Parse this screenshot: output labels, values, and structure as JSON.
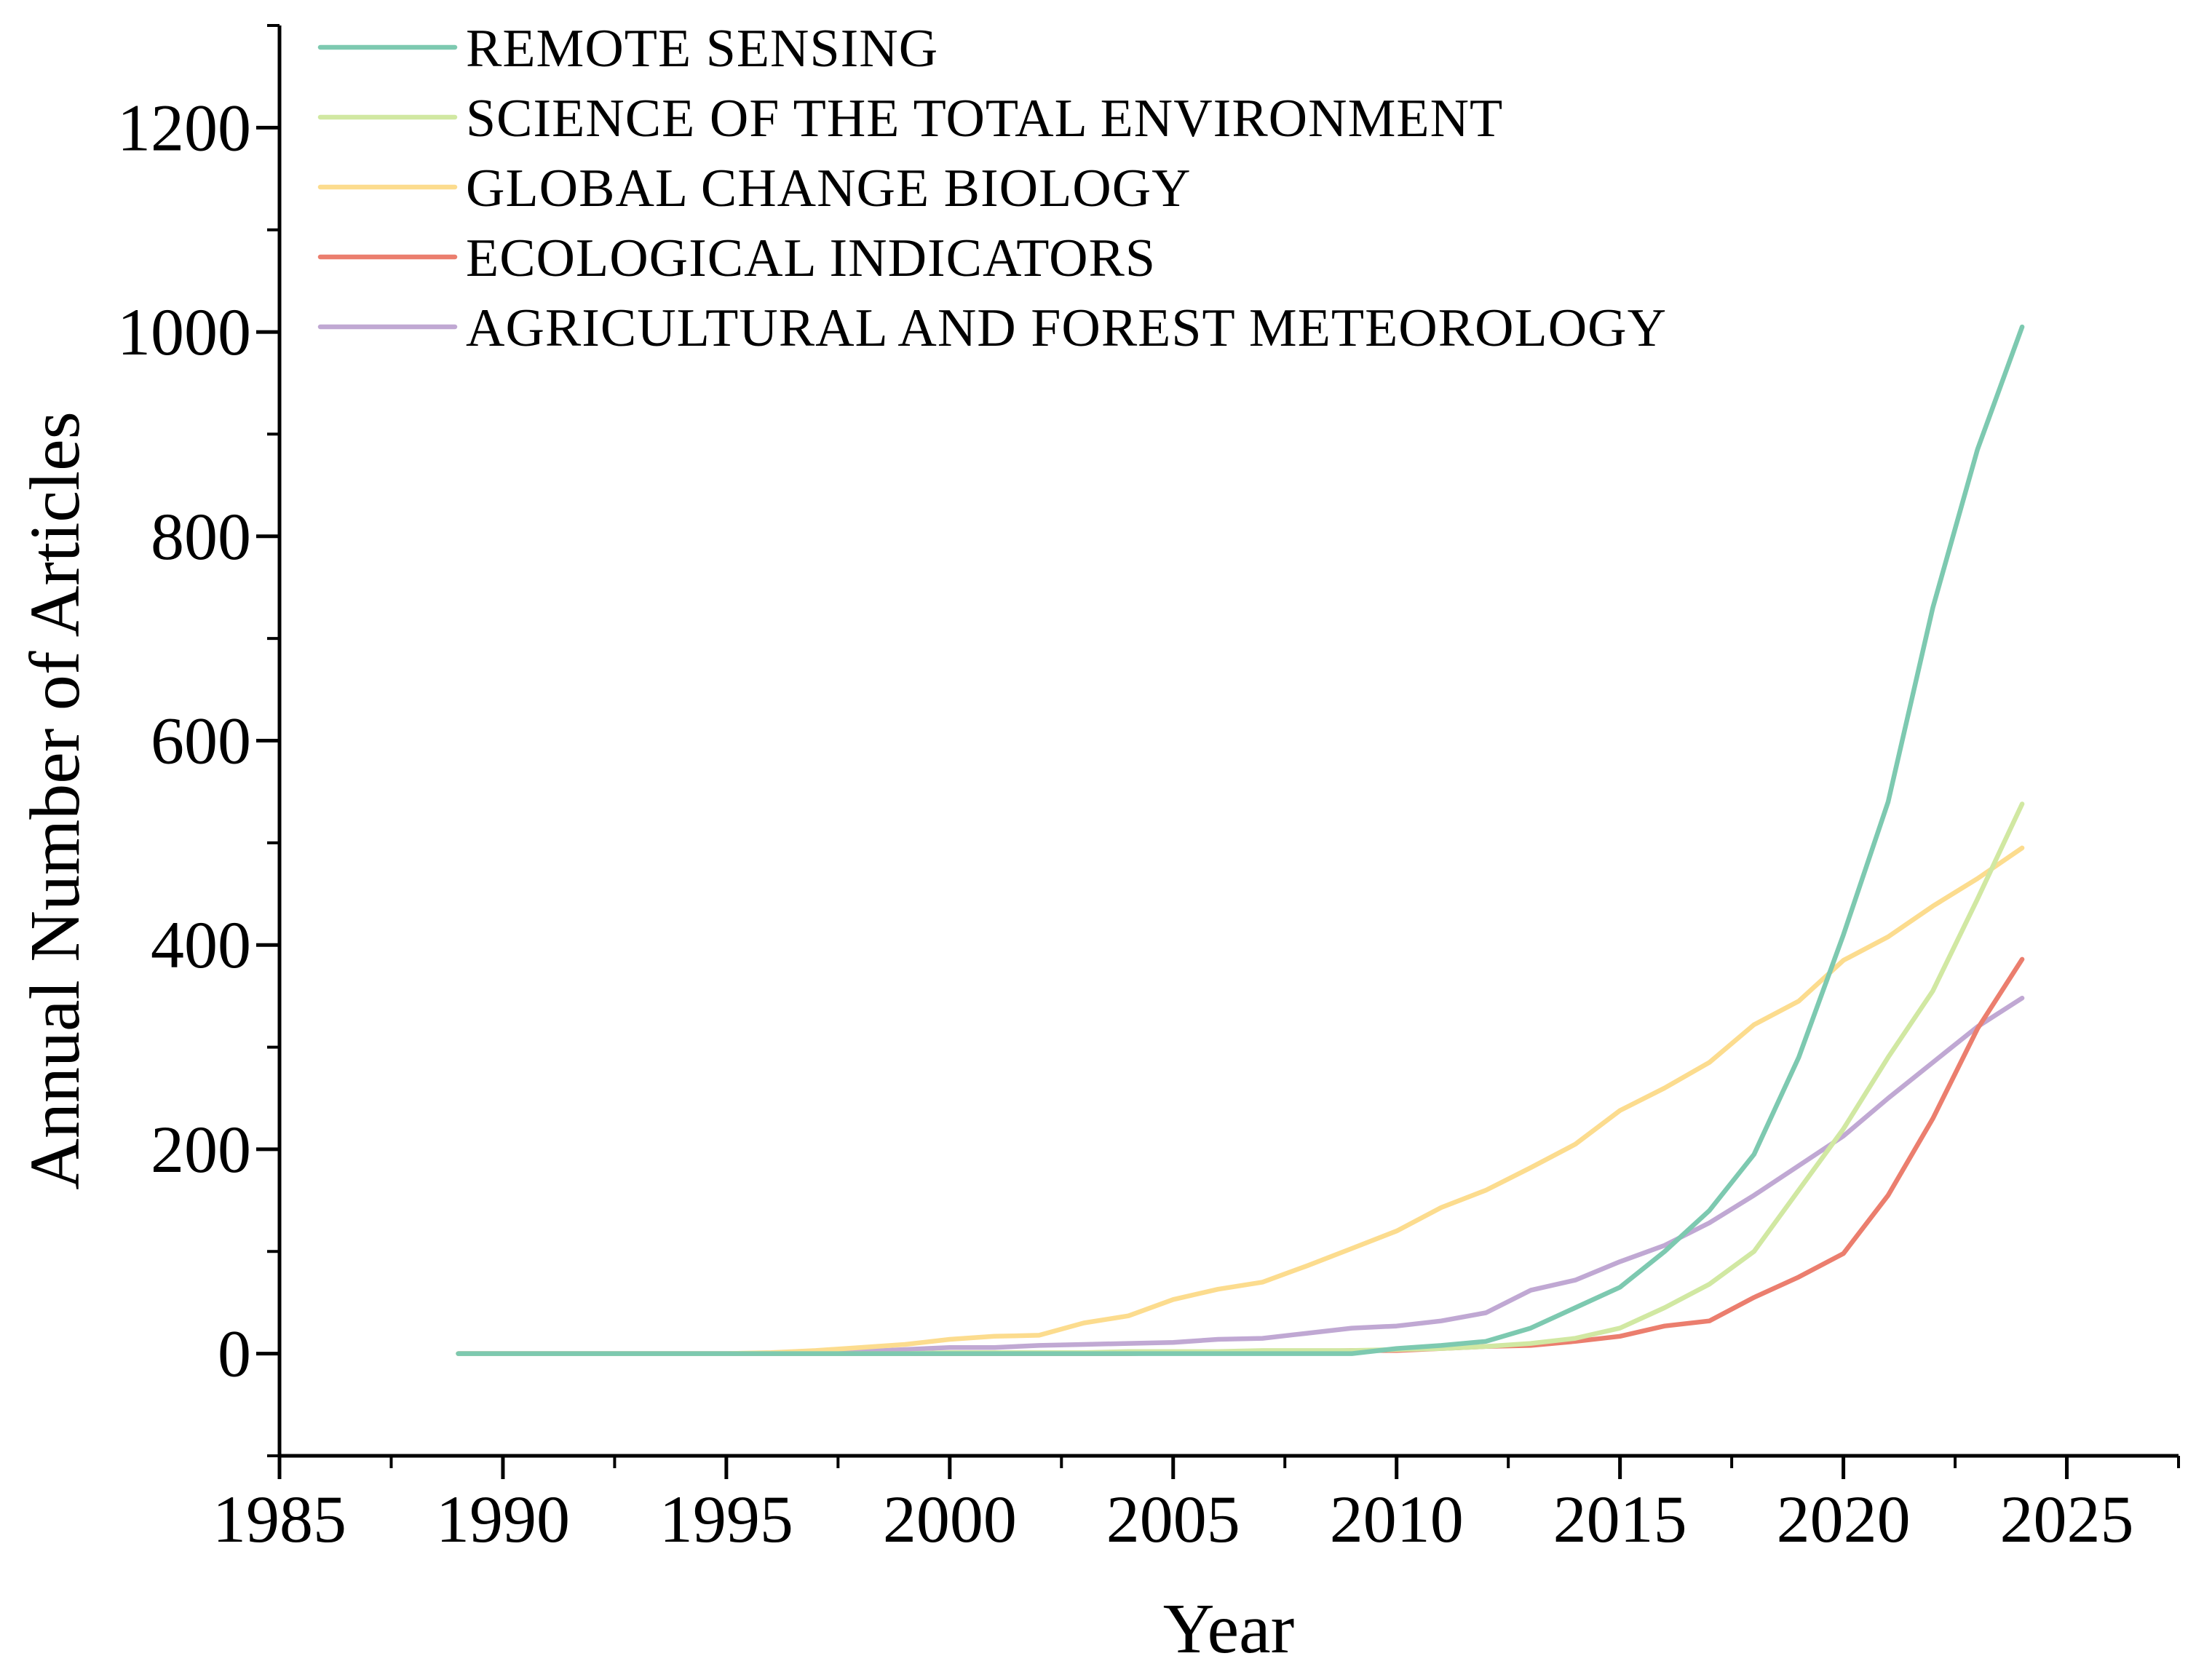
{
  "chart_data": {
    "type": "line",
    "title": "",
    "xlabel": "Year",
    "ylabel": "Annual Number of Articles",
    "xlim": [
      1985,
      2027.5
    ],
    "ylim": [
      -100,
      1300
    ],
    "x_ticks": [
      1985,
      1990,
      1995,
      2000,
      2005,
      2010,
      2015,
      2020,
      2025
    ],
    "x_tick_labels": [
      "1985",
      "1990",
      "1995",
      "2000",
      "2005",
      "2010",
      "2015",
      "2020",
      "2025"
    ],
    "y_ticks": [
      0,
      200,
      400,
      600,
      800,
      1000,
      1200
    ],
    "y_tick_labels": [
      "0",
      "200",
      "400",
      "600",
      "800",
      "1000",
      "1200"
    ],
    "x_minor_step": 2.5,
    "y_minor_step": 100,
    "grid": false,
    "legend_position": "top-left",
    "x": [
      1989,
      1990,
      1991,
      1992,
      1993,
      1994,
      1995,
      1996,
      1997,
      1998,
      1999,
      2000,
      2001,
      2002,
      2003,
      2004,
      2005,
      2006,
      2007,
      2008,
      2009,
      2010,
      2011,
      2012,
      2013,
      2014,
      2015,
      2016,
      2017,
      2018,
      2019,
      2020,
      2021,
      2022,
      2023,
      2024
    ],
    "series": [
      {
        "name": "REMOTE SENSING",
        "color": "#7dc9b0",
        "values": [
          0,
          0,
          0,
          0,
          0,
          0,
          0,
          0,
          0,
          0,
          0,
          0,
          0,
          0,
          0,
          0,
          0,
          0,
          0,
          0,
          0,
          5,
          8,
          12,
          25,
          45,
          65,
          100,
          140,
          195,
          290,
          410,
          540,
          730,
          885,
          1005
        ]
      },
      {
        "name": "SCIENCE OF THE TOTAL ENVIRONMENT",
        "color": "#d1e8a2",
        "values": [
          0,
          0,
          0,
          0,
          0,
          0,
          0,
          0,
          0,
          0,
          0,
          1,
          1,
          1,
          1,
          2,
          2,
          2,
          3,
          3,
          3,
          4,
          5,
          7,
          10,
          15,
          25,
          45,
          68,
          100,
          160,
          220,
          290,
          355,
          445,
          538
        ]
      },
      {
        "name": "GLOBAL CHANGE BIOLOGY",
        "color": "#fcdc8e",
        "values": [
          0,
          0,
          0,
          0,
          0,
          0,
          0,
          1,
          3,
          6,
          9,
          14,
          17,
          18,
          30,
          37,
          53,
          63,
          70,
          86,
          103,
          120,
          143,
          160,
          182,
          205,
          238,
          260,
          285,
          322,
          345,
          385,
          408,
          438,
          465,
          495
        ]
      },
      {
        "name": "ECOLOGICAL INDICATORS",
        "color": "#eb7e6e",
        "values": [
          0,
          0,
          0,
          0,
          0,
          0,
          0,
          0,
          0,
          0,
          0,
          0,
          0,
          0,
          0,
          0,
          1,
          1,
          2,
          2,
          3,
          3,
          5,
          7,
          8,
          12,
          17,
          27,
          32,
          55,
          75,
          98,
          155,
          230,
          318,
          386
        ]
      },
      {
        "name": "AGRICULTURAL AND FOREST METEOROLOGY",
        "color": "#c0a8d3",
        "values": [
          0,
          0,
          0,
          0,
          0,
          0,
          0,
          0,
          1,
          2,
          4,
          6,
          6,
          8,
          9,
          10,
          11,
          14,
          15,
          20,
          25,
          27,
          32,
          40,
          62,
          72,
          90,
          106,
          128,
          155,
          184,
          213,
          250,
          285,
          320,
          348
        ]
      }
    ]
  }
}
